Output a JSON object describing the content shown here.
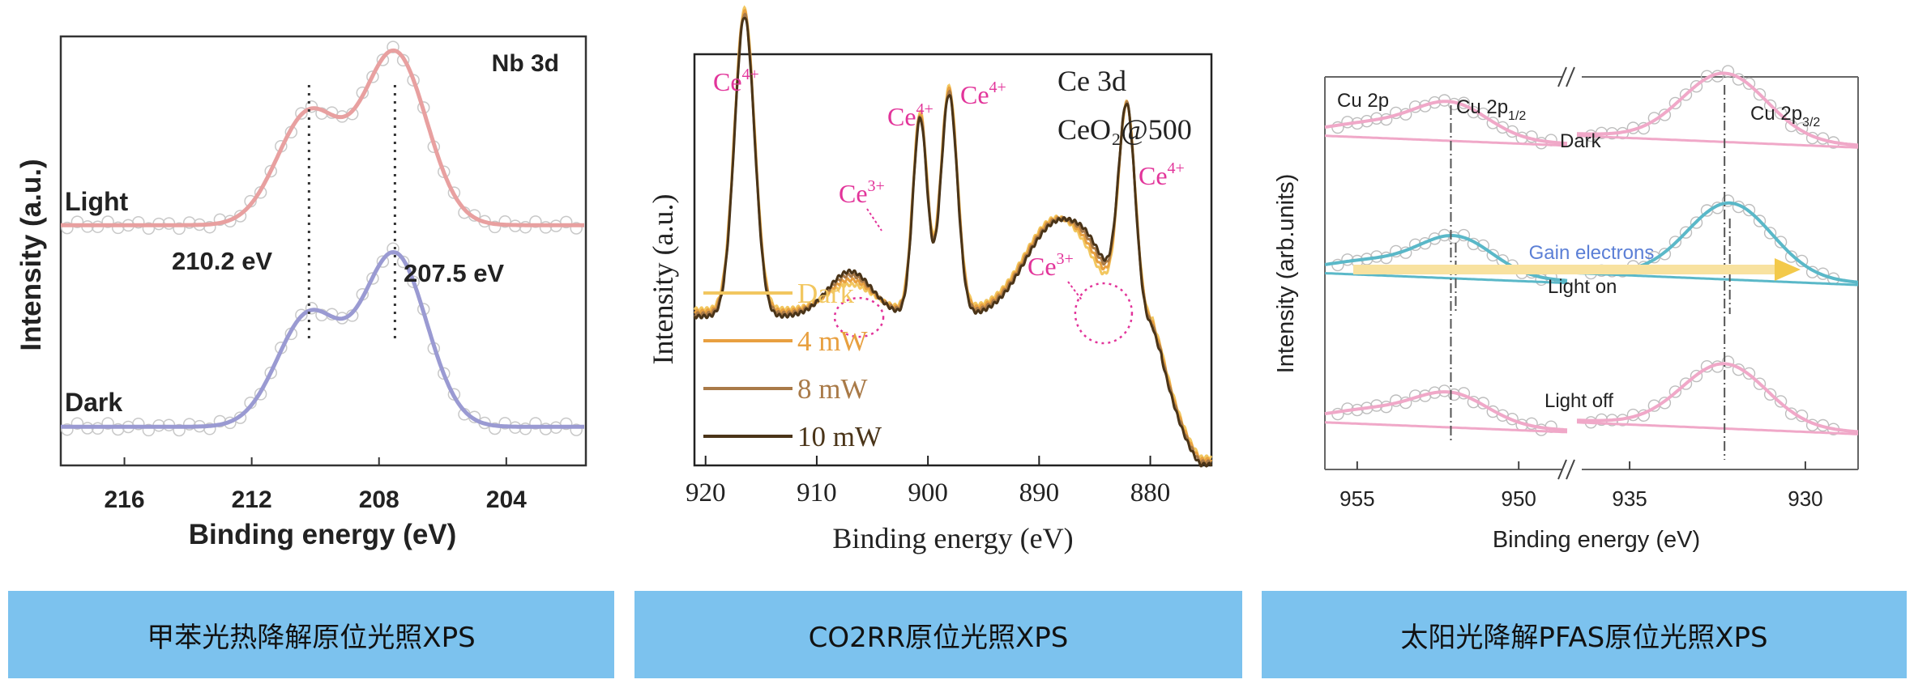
{
  "chart_data": [
    {
      "type": "line",
      "title": "Nb 3d",
      "xlabel": "Binding energy (eV)",
      "ylabel": "Intensity (a.u.)",
      "xlim": [
        218,
        201.5
      ],
      "x_reversed": true,
      "xticks": [
        216,
        212,
        208,
        204
      ],
      "series": [
        {
          "name": "Light",
          "color": "#e8a0a0",
          "offset": 0.56,
          "peaks": [
            {
              "center": 210.2,
              "height": 0.26,
              "width": 1.0
            },
            {
              "center": 207.5,
              "height": 0.4,
              "width": 1.0
            }
          ]
        },
        {
          "name": "Dark",
          "color": "#9a9ad2",
          "offset": 0.09,
          "peaks": [
            {
              "center": 210.2,
              "height": 0.26,
              "width": 1.0
            },
            {
              "center": 207.5,
              "height": 0.4,
              "width": 1.0
            }
          ]
        }
      ],
      "annotations": [
        {
          "text": "210.2 eV",
          "x": 210.2
        },
        {
          "text": "207.5 eV",
          "x": 207.5
        }
      ],
      "caption": "甲苯光热降解原位光照XPS"
    },
    {
      "type": "line",
      "title": "Ce 3d",
      "subtitle": "CeO₂@500",
      "xlabel": "Binding energy (eV)",
      "ylabel": "Intensity (a.u.)",
      "xlim": [
        921,
        874.5
      ],
      "x_reversed": true,
      "xticks": [
        920,
        910,
        900,
        890,
        880
      ],
      "series": [
        {
          "name": "Dark",
          "color": "#f2c760"
        },
        {
          "name": "4 mW",
          "color": "#e8a040"
        },
        {
          "name": "8 mW",
          "color": "#a97a48"
        },
        {
          "name": "10 mW",
          "color": "#4a3418"
        }
      ],
      "peaks": [
        {
          "center": 916.5,
          "height": 0.73,
          "width": 0.9
        },
        {
          "center": 907.0,
          "height": 0.06,
          "width": 2.0,
          "ce3": 0.05
        },
        {
          "center": 900.7,
          "height": 0.48,
          "width": 0.65
        },
        {
          "center": 898.1,
          "height": 0.54,
          "width": 0.75
        },
        {
          "center": 888.5,
          "height": 0.22,
          "width": 2.8
        },
        {
          "center": 885.0,
          "height": 0.02,
          "width": 1.8,
          "ce3": 0.06
        },
        {
          "center": 882.1,
          "height": 0.5,
          "width": 0.75
        }
      ],
      "labels": [
        {
          "text": "Ce",
          "sup": "4+",
          "x": 916.5
        },
        {
          "text": "Ce",
          "sup": "4+",
          "x": 900.7
        },
        {
          "text": "Ce",
          "sup": "4+",
          "x": 898.1
        },
        {
          "text": "Ce",
          "sup": "4+",
          "x": 882.1
        },
        {
          "text": "Ce",
          "sup": "3+",
          "x": 907.0
        },
        {
          "text": "Ce",
          "sup": "3+",
          "x": 885.0
        }
      ],
      "caption": "CO2RR原位光照XPS"
    },
    {
      "type": "line",
      "xlabel": "Binding energy (eV)",
      "ylabel": "Intensity (arb.units)",
      "axis_break": true,
      "xlim_left": [
        956,
        948.5
      ],
      "xlim_right": [
        936.5,
        928.5
      ],
      "xticks_left": [
        955,
        950
      ],
      "xticks_right": [
        935,
        930
      ],
      "title": "Cu 2p",
      "peak_labels": [
        {
          "text": "Cu 2p",
          "sub": "1/2",
          "x": 952.1
        },
        {
          "text": "Cu 2p",
          "sub": "3/2",
          "x": 932.3
        }
      ],
      "series": [
        {
          "name": "Dark",
          "color": "#f0a8c8",
          "offset": 0.82,
          "shift": 0.0,
          "h1": 0.09,
          "h2": 0.17
        },
        {
          "name": "Light on",
          "color": "#5ab8c8",
          "offset": 0.47,
          "shift": -0.15,
          "h1": 0.1,
          "h2": 0.19
        },
        {
          "name": "Light off",
          "color": "#f0a8c8",
          "offset": 0.09,
          "shift": 0.0,
          "h1": 0.08,
          "h2": 0.16
        }
      ],
      "arrow_label": "Gain electrons",
      "caption": "太阳光降解PFAS原位光照XPS"
    }
  ]
}
